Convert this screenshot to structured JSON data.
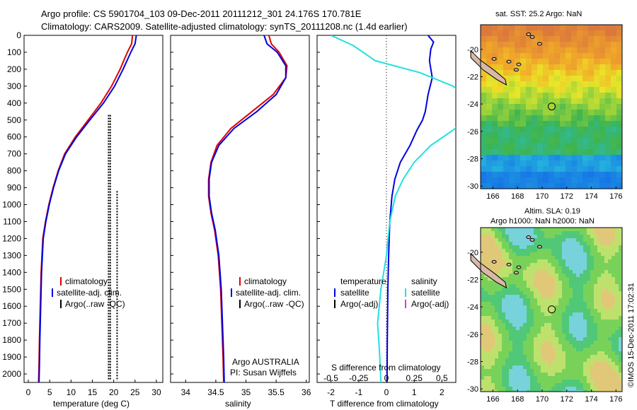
{
  "header": {
    "line1": "Argo profile: CS 5901704_103 09-Dec-2011 20111212_301 24.176S 170.781E",
    "line2": "Climatology: CARS2009. Satellite-adjusted climatology: synTS_20111208.nc (1.4d earlier)"
  },
  "stamp": "©IMOS 15-Dec-2011 17:02:31",
  "colors": {
    "climatology": "#e00000",
    "satellite": "#0000e0",
    "argo": "#000000",
    "sat_salinity": "#22e0e0",
    "argo_salinity": "#d040d0"
  },
  "chart_data": [
    {
      "type": "line",
      "name": "temperature",
      "xlabel": "temperature (deg C)",
      "ylabel": "",
      "xlim": [
        -1,
        31.5
      ],
      "ylim": [
        2050,
        0
      ],
      "xticks": [
        0,
        5,
        10,
        15,
        20,
        25,
        30
      ],
      "yticks": [
        0,
        100,
        200,
        300,
        400,
        500,
        600,
        700,
        800,
        900,
        1000,
        1100,
        1200,
        1300,
        1400,
        1500,
        1600,
        1700,
        1800,
        1900,
        2000
      ],
      "legend": [
        "climatology",
        "satellite-adj. clim.",
        "Argo(..raw -QC)"
      ],
      "series": [
        {
          "name": "climatology",
          "color": "#e00000",
          "x": [
            24.4,
            24.2,
            23.2,
            21.5,
            19.5,
            17.0,
            14.0,
            11.0,
            8.5,
            7.0,
            5.8,
            4.8,
            4.0,
            3.4,
            3.0,
            2.8,
            2.6,
            2.5,
            2.4
          ],
          "y": [
            0,
            50,
            100,
            200,
            300,
            400,
            500,
            600,
            700,
            800,
            900,
            1000,
            1100,
            1200,
            1400,
            1600,
            1800,
            1950,
            2050
          ]
        },
        {
          "name": "satellite-adj. clim.",
          "color": "#0000e0",
          "x": [
            25.3,
            25.0,
            24.0,
            22.2,
            20.2,
            17.6,
            14.4,
            11.3,
            8.7,
            7.1,
            5.9,
            4.9,
            4.1,
            3.5,
            3.1,
            2.9,
            2.7,
            2.6,
            2.5
          ],
          "y": [
            0,
            50,
            100,
            200,
            300,
            400,
            500,
            600,
            700,
            800,
            900,
            1000,
            1100,
            1200,
            1400,
            1600,
            1800,
            1950,
            2050
          ]
        }
      ],
      "argo_columns": [
        {
          "x": 18.8,
          "y0": 470,
          "y1": 2040
        },
        {
          "x": 19.2,
          "y0": 470,
          "y1": 2040
        },
        {
          "x": 20.8,
          "y0": 920,
          "y1": 2040
        }
      ]
    },
    {
      "type": "line",
      "name": "salinity",
      "xlabel": "salinity",
      "xlim": [
        33.75,
        36.05
      ],
      "ylim": [
        2050,
        0
      ],
      "xticks": [
        34,
        34.5,
        35,
        35.5,
        36
      ],
      "legend": [
        "climatology",
        "satellite-adj. clim.",
        "Argo(..raw -QC)"
      ],
      "annotation": [
        "Argo AUSTRALIA",
        "PI: Susan Wijffels"
      ],
      "series": [
        {
          "name": "climatology",
          "color": "#e00000",
          "x": [
            35.38,
            35.42,
            35.55,
            35.68,
            35.66,
            35.45,
            35.1,
            34.75,
            34.52,
            34.42,
            34.38,
            34.38,
            34.42,
            34.48,
            34.54,
            34.58,
            34.6,
            34.62,
            34.63
          ],
          "y": [
            0,
            50,
            100,
            180,
            250,
            350,
            450,
            550,
            650,
            750,
            850,
            950,
            1050,
            1150,
            1300,
            1500,
            1700,
            1900,
            2050
          ]
        },
        {
          "name": "satellite-adj. clim.",
          "color": "#0000e0",
          "x": [
            35.3,
            35.35,
            35.52,
            35.66,
            35.66,
            35.5,
            35.18,
            34.8,
            34.55,
            34.43,
            34.39,
            34.39,
            34.43,
            34.49,
            34.55,
            34.59,
            34.61,
            34.63,
            34.64
          ],
          "y": [
            0,
            50,
            100,
            180,
            250,
            350,
            450,
            550,
            650,
            750,
            850,
            950,
            1050,
            1150,
            1300,
            1500,
            1700,
            1900,
            2050
          ]
        }
      ]
    },
    {
      "type": "line",
      "name": "difference",
      "xlabel": "T difference from climatology",
      "xlabel_top": "S difference from climatology",
      "xlim": [
        -2.5,
        2.5
      ],
      "ylim": [
        2050,
        0
      ],
      "xticks_T": [
        -2,
        -1,
        0,
        1,
        2
      ],
      "xticks_S": [
        -0.5,
        -0.25,
        0,
        0.25,
        0.5
      ],
      "legend_temperature": {
        "title": "temperature",
        "items": [
          "satellite",
          "Argo(-adj)"
        ]
      },
      "legend_salinity": {
        "title": "salinity",
        "items": [
          "satellite",
          "Argo(-adj)"
        ]
      },
      "series": [
        {
          "name": "T satellite",
          "color": "#0000e0",
          "x": [
            1.5,
            1.7,
            1.6,
            1.55,
            1.65,
            1.5,
            1.4,
            1.3,
            1.1,
            0.85,
            0.5,
            0.3,
            0.2,
            0.12,
            0.08,
            0.05,
            0.03,
            0.02
          ],
          "y": [
            0,
            40,
            80,
            150,
            250,
            350,
            450,
            500,
            560,
            650,
            750,
            850,
            950,
            1100,
            1300,
            1500,
            1800,
            2050
          ]
        },
        {
          "name": "S satellite",
          "color": "#22e0e0",
          "x": [
            -0.5,
            -0.3,
            -0.1,
            0.3,
            0.6,
            0.8,
            0.75,
            0.6,
            0.4,
            0.25,
            0.15,
            0.08,
            0.03,
            0.0,
            -0.05,
            -0.08,
            -0.06,
            -0.05
          ],
          "y": [
            0,
            60,
            150,
            220,
            300,
            400,
            480,
            560,
            650,
            750,
            850,
            950,
            1100,
            1300,
            1500,
            1700,
            1900,
            2050
          ]
        }
      ]
    }
  ],
  "maps": [
    {
      "title1": "sat. SST: 25.2 Argo: NaN",
      "title2": "",
      "xticks": [
        166,
        168,
        170,
        172,
        174,
        176
      ],
      "yticks": [
        -20,
        -22,
        -24,
        -26,
        -28,
        -30
      ],
      "xlim": [
        165,
        176.5
      ],
      "ylim": [
        -30.2,
        -18.2
      ],
      "marker": {
        "lon": 170.78,
        "lat": -24.18
      }
    },
    {
      "title1": "Altim. SLA: 0.19",
      "title2": "Argo h1000: NaN h2000: NaN",
      "xticks": [
        166,
        168,
        170,
        172,
        174,
        176
      ],
      "yticks": [
        -20,
        -22,
        -24,
        -26,
        -28,
        -30
      ],
      "xlim": [
        165,
        176.5
      ],
      "ylim": [
        -30.2,
        -18.2
      ],
      "marker": {
        "lon": 170.78,
        "lat": -24.18
      }
    }
  ]
}
